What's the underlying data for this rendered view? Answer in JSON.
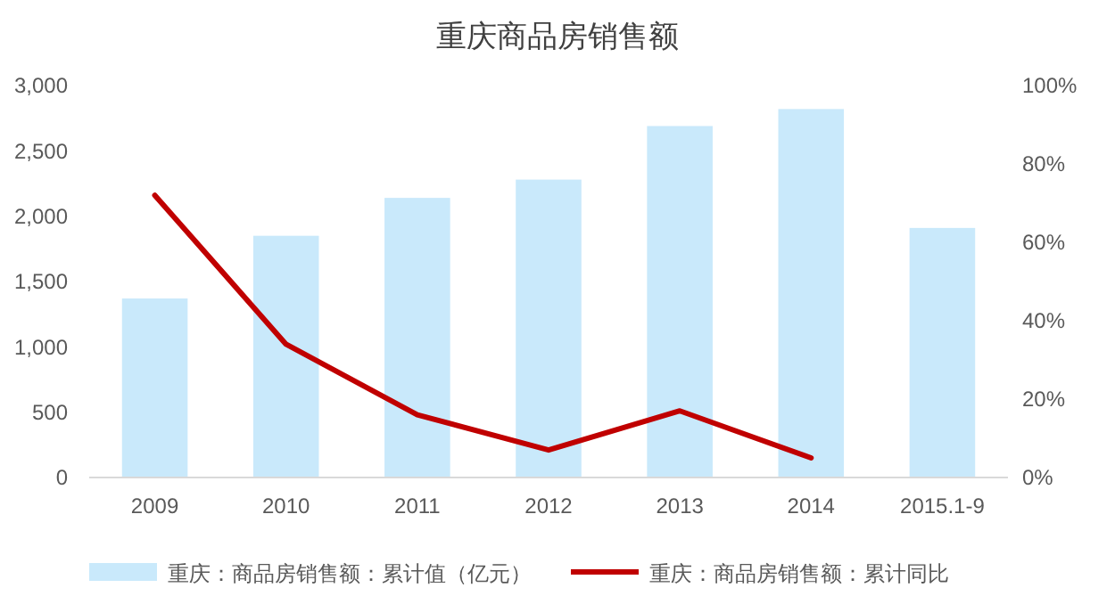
{
  "chart_data": {
    "type": "bar",
    "title": "重庆商品房销售额",
    "categories": [
      "2009",
      "2010",
      "2011",
      "2012",
      "2013",
      "2014",
      "2015.1-9"
    ],
    "series": [
      {
        "name": "重庆：商品房销售额：累计值（亿元）",
        "color": "#c9e9fb",
        "values": [
          1370,
          1850,
          2140,
          2280,
          2690,
          2820,
          1910
        ]
      },
      {
        "name": "重庆：商品房销售额：累计同比",
        "type": "line",
        "axis": "y2",
        "color": "#c00000",
        "values": [
          72,
          34,
          16,
          7,
          17,
          5,
          null
        ]
      }
    ],
    "ylim": [
      0,
      3000
    ],
    "yticks": [
      {
        "value": 0,
        "label": "0"
      },
      {
        "value": 500,
        "label": "500"
      },
      {
        "value": 1000,
        "label": "1,000"
      },
      {
        "value": 1500,
        "label": "1,500"
      },
      {
        "value": 2000,
        "label": "2,000"
      },
      {
        "value": 2500,
        "label": "2,500"
      },
      {
        "value": 3000,
        "label": "3,000"
      }
    ],
    "y2lim": [
      0,
      100
    ],
    "y2ticks": [
      {
        "value": 0,
        "label": "0%"
      },
      {
        "value": 20,
        "label": "20%"
      },
      {
        "value": 40,
        "label": "40%"
      },
      {
        "value": 60,
        "label": "60%"
      },
      {
        "value": 80,
        "label": "80%"
      },
      {
        "value": 100,
        "label": "100%"
      }
    ],
    "legend": "bottom",
    "grid": false
  }
}
